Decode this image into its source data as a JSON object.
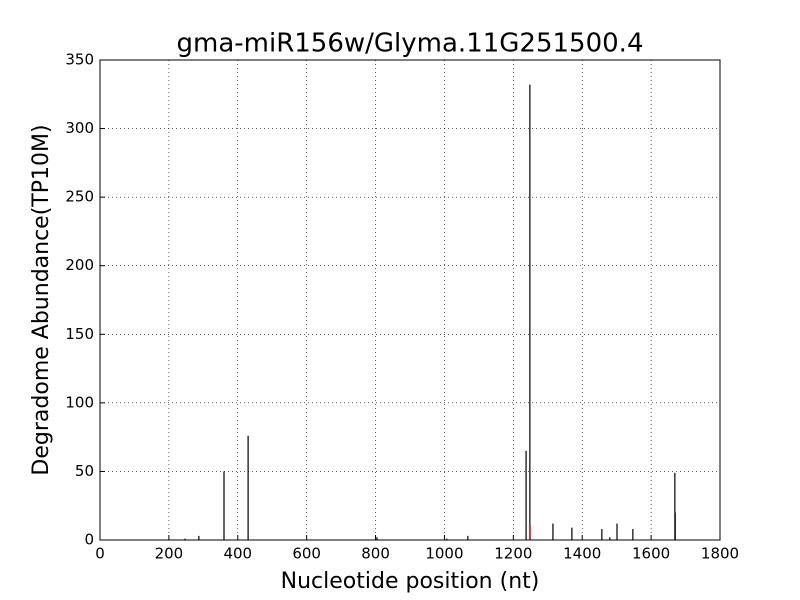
{
  "chart_data": {
    "type": "spike",
    "title": "gma-miR156w/Glyma.11G251500.4",
    "xlabel": "Nucleotide position (nt)",
    "ylabel": "Degradome Abundance(TP10M)",
    "series": [
      {
        "color": "#000000",
        "x": [
          247,
          287,
          360,
          430,
          804,
          1007,
          1068,
          1237,
          1248,
          1315,
          1370,
          1457,
          1480,
          1501,
          1547,
          1669,
          1670
        ],
        "values": [
          1,
          3,
          50,
          76,
          2,
          1,
          3,
          65,
          332,
          12,
          9,
          8,
          2,
          12,
          8,
          49,
          20
        ]
      },
      {
        "color": "#ff0000",
        "x": [
          1249
        ],
        "values": [
          11
        ]
      }
    ],
    "xlim": [
      0,
      1800
    ],
    "xticks": [
      0,
      200,
      400,
      600,
      800,
      1000,
      1200,
      1400,
      1600,
      1800
    ],
    "ylim": [
      0,
      350
    ],
    "yticks": [
      0,
      50,
      100,
      150,
      200,
      250,
      300,
      350
    ],
    "grid": true
  }
}
